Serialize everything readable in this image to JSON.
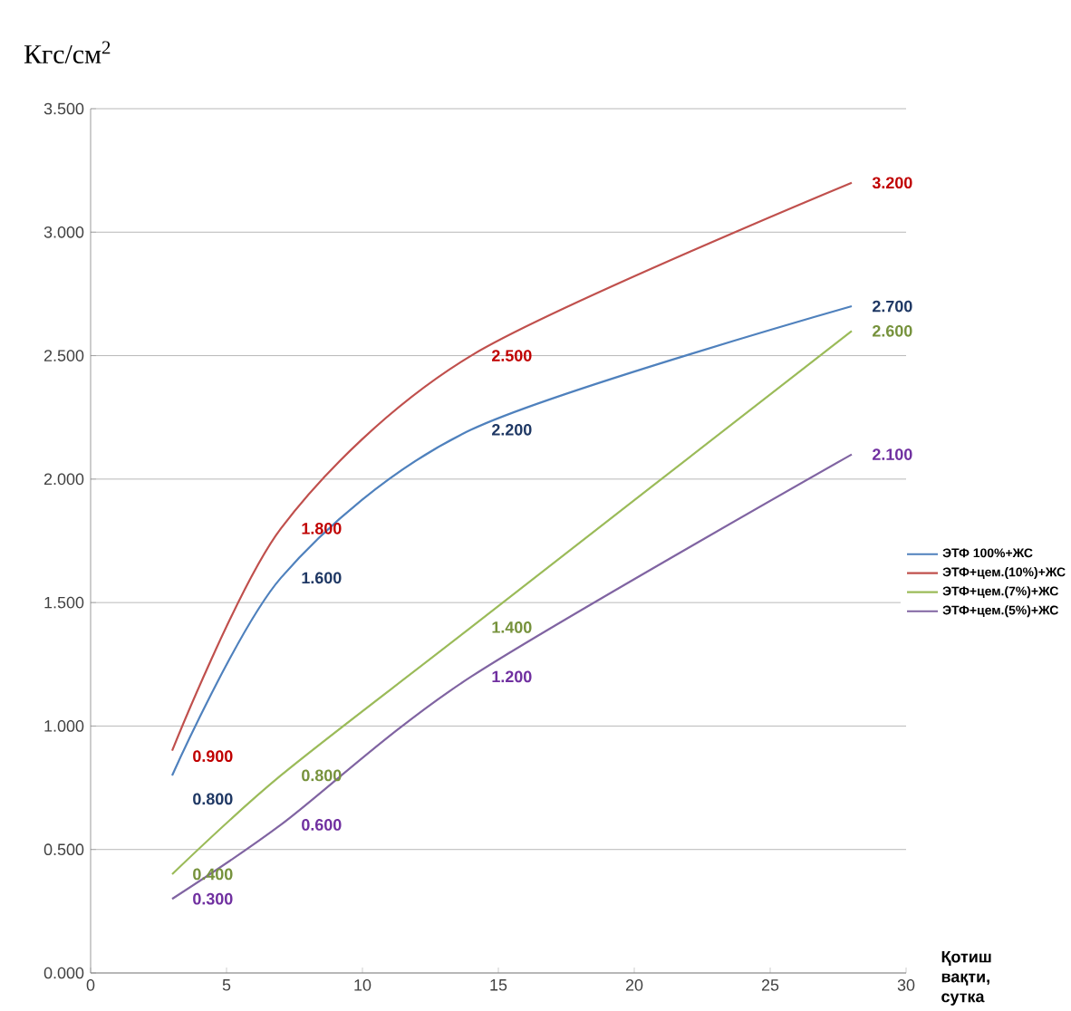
{
  "chart_data": {
    "type": "line",
    "ylabel": "Кгс/см$^{2}$",
    "xlabel": "Қотиш вақти, сутка",
    "xlim": [
      0,
      30
    ],
    "xticks": [
      0,
      5,
      10,
      15,
      20,
      25,
      30
    ],
    "ylim": [
      0,
      3.5
    ],
    "yticks": [
      {
        "value": 0,
        "label": "0.000"
      },
      {
        "value": 0.5,
        "label": "0.500"
      },
      {
        "value": 1,
        "label": "1.000"
      },
      {
        "value": 1.5,
        "label": "1.500"
      },
      {
        "value": 2,
        "label": "2.000"
      },
      {
        "value": 2.5,
        "label": "2.500"
      },
      {
        "value": 3,
        "label": "3.000"
      },
      {
        "value": 3.5,
        "label": "3.500"
      }
    ],
    "grid": "y",
    "legend": "right",
    "marker": "none",
    "line_style": "solid",
    "x": [
      3,
      7,
      14,
      28
    ],
    "series": [
      {
        "name": "ЭТФ 100%+ЖС",
        "color": "#4f81bd",
        "values": [
          0.8,
          1.6,
          2.2,
          2.7
        ],
        "value_labels": [
          "0.800",
          "1.600",
          "2.200",
          "2.700"
        ]
      },
      {
        "name": "ЭТФ+цем.(10%)+ЖС",
        "color": "#c0504d",
        "values": [
          0.9,
          1.8,
          2.5,
          3.2
        ],
        "value_labels": [
          "0.900",
          "1.800",
          "2.500",
          "3.200"
        ]
      },
      {
        "name": "ЭТФ+цем.(7%)+ЖС",
        "color": "#9bbb59",
        "values": [
          0.4,
          0.8,
          1.4,
          2.6
        ],
        "value_labels": [
          "0.400",
          "0.800",
          "1.400",
          "2.600"
        ]
      },
      {
        "name": "ЭТФ+цем.(5%)+ЖС",
        "color": "#8064a2",
        "values": [
          0.3,
          0.6,
          1.2,
          2.1
        ],
        "value_labels": [
          "0.300",
          "0.600",
          "1.200",
          "2.100"
        ]
      }
    ]
  }
}
